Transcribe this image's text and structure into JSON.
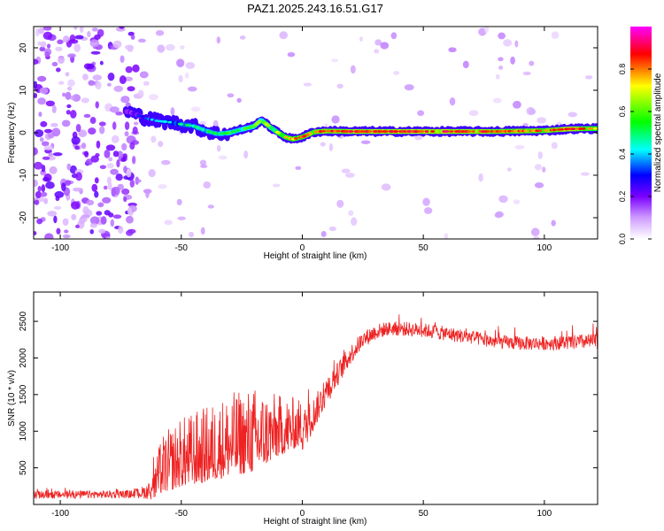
{
  "title": "PAZ1.2025.243.16.51.G17",
  "chart_data": [
    {
      "type": "heatmap",
      "title": "",
      "xlabel": "Height of straight line (km)",
      "ylabel": "Frequency (Hz)",
      "xlim": [
        -111,
        122
      ],
      "ylim": [
        -25,
        25
      ],
      "xticks": [
        -100,
        -50,
        0,
        50,
        100
      ],
      "yticks": [
        -20,
        -10,
        0,
        10,
        20
      ],
      "colorbar": {
        "label": "Normalized spectral amplitude",
        "range": [
          0,
          1
        ],
        "ticks": [
          0.0,
          0.2,
          0.4,
          0.6,
          0.8
        ],
        "colors": [
          "#ffffff",
          "#cf9cff",
          "#7a00ff",
          "#0000ff",
          "#00ffff",
          "#00ff00",
          "#ffff00",
          "#ff0000",
          "#ff00ff"
        ]
      },
      "ridge": {
        "description_points_km": [
          -72,
          -65,
          -60,
          -55,
          -50,
          -45,
          -40,
          -35,
          -30,
          -25,
          -20,
          -17,
          -13,
          -10,
          -7,
          -4,
          0,
          5,
          10,
          20,
          40,
          60,
          80,
          100,
          110,
          122
        ],
        "frequency_hz": [
          5,
          3.5,
          2.8,
          2.5,
          2,
          1.6,
          0.5,
          -0.3,
          0,
          0.8,
          1.5,
          3.0,
          1.2,
          0,
          -1.0,
          -1.5,
          -1.0,
          0.2,
          0.4,
          0.3,
          0.3,
          0.3,
          0.3,
          0.5,
          0.9,
          1.0
        ],
        "amplitude": [
          0.25,
          0.3,
          0.35,
          0.4,
          0.45,
          0.45,
          0.5,
          0.5,
          0.55,
          0.55,
          0.6,
          0.6,
          0.65,
          0.7,
          0.7,
          0.75,
          0.78,
          0.8,
          0.82,
          0.85,
          0.85,
          0.85,
          0.82,
          0.78,
          0.88,
          0.7
        ]
      }
    },
    {
      "type": "line",
      "title": "",
      "xlabel": "Height of straight line (km)",
      "ylabel": "SNR (10 * v/v)",
      "xlim": [
        -111,
        122
      ],
      "ylim": [
        0,
        2900
      ],
      "xticks": [
        -100,
        -50,
        0,
        50,
        100
      ],
      "yticks": [
        500,
        1000,
        1500,
        2000,
        2500
      ],
      "color": "#ee2222",
      "envelope": {
        "x": [
          -111,
          -70,
          -63,
          -58,
          -50,
          -40,
          -30,
          -20,
          -10,
          0,
          5,
          10,
          15,
          20,
          25,
          30,
          35,
          40,
          50,
          60,
          70,
          80,
          90,
          100,
          110,
          122
        ],
        "mean": [
          130,
          140,
          180,
          380,
          520,
          600,
          720,
          780,
          900,
          1000,
          1250,
          1550,
          1800,
          2050,
          2250,
          2350,
          2400,
          2400,
          2380,
          2330,
          2280,
          2220,
          2200,
          2200,
          2210,
          2230
        ],
        "spread": [
          60,
          60,
          120,
          420,
          500,
          550,
          600,
          620,
          450,
          330,
          250,
          220,
          180,
          150,
          130,
          120,
          110,
          110,
          110,
          110,
          105,
          105,
          105,
          105,
          110,
          120
        ]
      }
    }
  ]
}
